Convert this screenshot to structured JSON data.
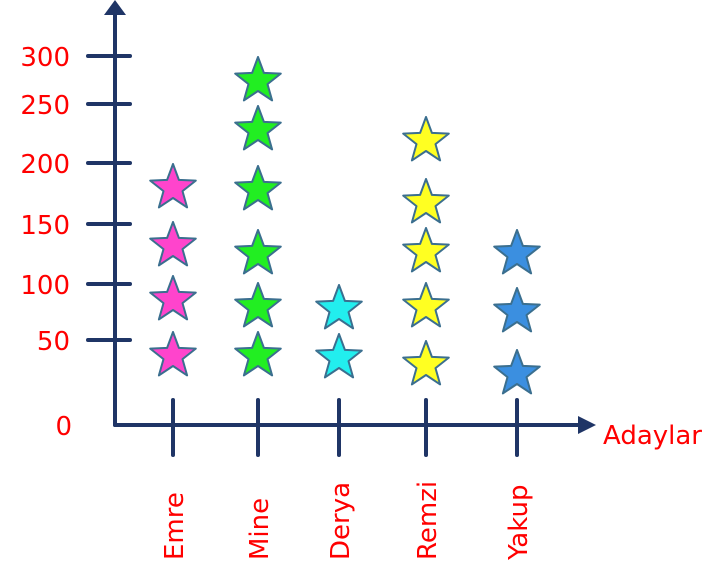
{
  "chart_data": {
    "type": "pictograph",
    "xlabel": "Adaylar",
    "yticks": [
      "0",
      "50",
      "100",
      "150",
      "200",
      "250",
      "300"
    ],
    "ylim": [
      0,
      300
    ],
    "categories": [
      "Emre",
      "Mine",
      "Derya",
      "Remzi",
      "Yakup"
    ],
    "values": [
      4,
      6,
      2,
      5,
      3
    ],
    "colors": [
      "#ff44cc",
      "#22ee22",
      "#22eeee",
      "#ffff22",
      "#3b8fe0"
    ],
    "grid": false
  }
}
